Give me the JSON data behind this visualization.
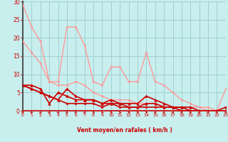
{
  "xlabel": "Vent moyen/en rafales ( km/h )",
  "background_color": "#c8eeee",
  "grid_color": "#99cccc",
  "left_spine_color": "#555555",
  "axis_color": "#cc0000",
  "text_color": "#cc0000",
  "xlim": [
    0,
    23
  ],
  "ylim": [
    0,
    30
  ],
  "yticks": [
    0,
    5,
    10,
    15,
    20,
    25,
    30
  ],
  "xticks": [
    0,
    1,
    2,
    3,
    4,
    5,
    6,
    7,
    8,
    9,
    10,
    11,
    12,
    13,
    14,
    15,
    16,
    17,
    18,
    19,
    20,
    21,
    22,
    23
  ],
  "series": [
    {
      "x": [
        0,
        1,
        2,
        3,
        4,
        5,
        6,
        7,
        8,
        9,
        10,
        11,
        12,
        13,
        14,
        15,
        16,
        17,
        18,
        19,
        20,
        21,
        22,
        23
      ],
      "y": [
        29,
        23,
        19,
        8,
        7,
        7,
        8,
        7,
        5,
        4,
        3,
        3,
        3,
        2,
        2,
        2,
        1,
        1,
        1,
        1,
        1,
        0,
        0,
        0
      ],
      "color": "#ff9999",
      "linewidth": 1.0,
      "marker": "s",
      "markersize": 1.5
    },
    {
      "x": [
        0,
        1,
        2,
        3,
        4,
        5,
        6,
        7,
        8,
        9,
        10,
        11,
        12,
        13,
        14,
        15,
        16,
        17,
        18,
        19,
        20,
        21,
        22,
        23
      ],
      "y": [
        19,
        16,
        13,
        8,
        8,
        23,
        23,
        18,
        8,
        7,
        12,
        12,
        8,
        8,
        16,
        8,
        7,
        5,
        3,
        2,
        1,
        1,
        0,
        6
      ],
      "color": "#ff9999",
      "linewidth": 1.0,
      "marker": "s",
      "markersize": 1.5
    },
    {
      "x": [
        0,
        1,
        2,
        3,
        4,
        5,
        6,
        7,
        8,
        9,
        10,
        11,
        12,
        13,
        14,
        15,
        16,
        17,
        18,
        19,
        20,
        21,
        22,
        23
      ],
      "y": [
        7,
        7,
        6,
        2,
        5,
        4,
        3,
        3,
        3,
        2,
        2,
        2,
        1,
        1,
        2,
        2,
        1,
        1,
        1,
        0,
        0,
        0,
        0,
        1
      ],
      "color": "#cc0000",
      "linewidth": 1.2,
      "marker": "^",
      "markersize": 2.5
    },
    {
      "x": [
        0,
        1,
        2,
        3,
        4,
        5,
        6,
        7,
        8,
        9,
        10,
        11,
        12,
        13,
        14,
        15,
        16,
        17,
        18,
        19,
        20,
        21,
        22,
        23
      ],
      "y": [
        7,
        6,
        5,
        4,
        3,
        6,
        4,
        3,
        3,
        2,
        3,
        2,
        2,
        2,
        4,
        3,
        2,
        1,
        1,
        1,
        0,
        0,
        0,
        0
      ],
      "color": "#cc0000",
      "linewidth": 1.2,
      "marker": "^",
      "markersize": 2.5
    },
    {
      "x": [
        0,
        1,
        2,
        3,
        4,
        5,
        6,
        7,
        8,
        9,
        10,
        11,
        12,
        13,
        14,
        15,
        16,
        17,
        18,
        19,
        20,
        21,
        22,
        23
      ],
      "y": [
        7,
        6,
        5,
        4,
        3,
        2,
        2,
        2,
        2,
        1,
        2,
        1,
        1,
        1,
        1,
        1,
        1,
        1,
        0,
        0,
        0,
        0,
        0,
        0
      ],
      "color": "#cc0000",
      "linewidth": 1.2,
      "marker": "D",
      "markersize": 1.5
    }
  ],
  "arrow_angles": [
    45,
    45,
    45,
    45,
    45,
    45,
    45,
    45,
    90,
    90,
    90,
    90,
    90,
    90,
    90,
    45,
    45,
    45,
    45,
    45,
    45,
    45,
    45,
    45
  ]
}
